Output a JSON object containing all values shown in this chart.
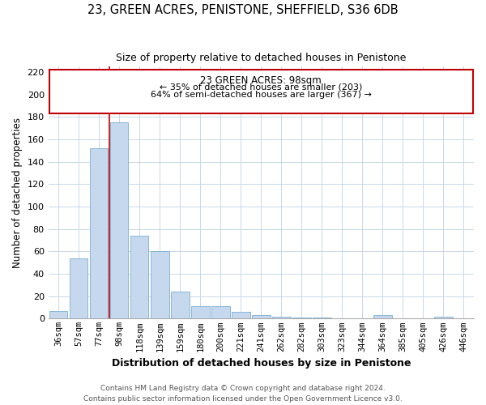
{
  "title": "23, GREEN ACRES, PENISTONE, SHEFFIELD, S36 6DB",
  "subtitle": "Size of property relative to detached houses in Penistone",
  "xlabel": "Distribution of detached houses by size in Penistone",
  "ylabel": "Number of detached properties",
  "bar_labels": [
    "36sqm",
    "57sqm",
    "77sqm",
    "98sqm",
    "118sqm",
    "139sqm",
    "159sqm",
    "180sqm",
    "200sqm",
    "221sqm",
    "241sqm",
    "262sqm",
    "282sqm",
    "303sqm",
    "323sqm",
    "344sqm",
    "364sqm",
    "385sqm",
    "405sqm",
    "426sqm",
    "446sqm"
  ],
  "bar_values": [
    7,
    54,
    152,
    175,
    74,
    60,
    24,
    11,
    11,
    6,
    3,
    2,
    1,
    1,
    0,
    0,
    3,
    0,
    0,
    2,
    0
  ],
  "bar_color": "#c5d8ed",
  "bar_edge_color": "#7bafd4",
  "vline_color": "#c00000",
  "annotation_title": "23 GREEN ACRES: 98sqm",
  "annotation_line1": "← 35% of detached houses are smaller (203)",
  "annotation_line2": "64% of semi-detached houses are larger (367) →",
  "annotation_box_color": "#c00000",
  "ylim": [
    0,
    225
  ],
  "yticks": [
    0,
    20,
    40,
    60,
    80,
    100,
    120,
    140,
    160,
    180,
    200,
    220
  ],
  "footnote1": "Contains HM Land Registry data © Crown copyright and database right 2024.",
  "footnote2": "Contains public sector information licensed under the Open Government Licence v3.0.",
  "figsize": [
    6.0,
    5.0
  ],
  "dpi": 100
}
